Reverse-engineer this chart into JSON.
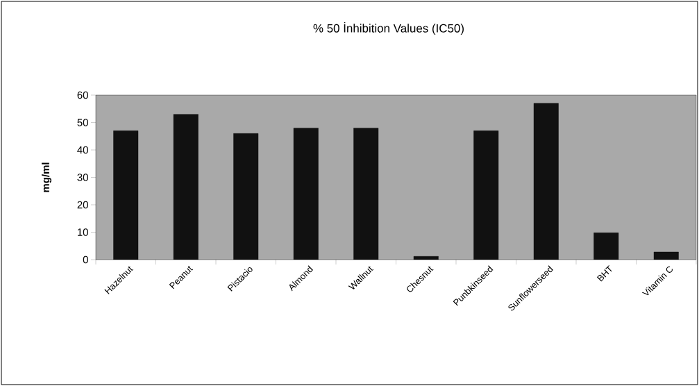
{
  "chart_data": {
    "type": "bar",
    "title": "% 50 İnhibition Values (IC50)",
    "ylabel": "mg/ml",
    "categories": [
      "Hazelnut",
      "Peanut",
      "Pistacio",
      "Almond",
      "Wallnut",
      "Chesnut",
      "Punbkinseed",
      "Sunflowerseed",
      "BHT",
      "Vitamin C"
    ],
    "values": [
      47,
      53,
      46,
      48,
      48,
      1.2,
      47,
      57,
      9.8,
      2.8
    ],
    "color": "#111111",
    "ylim": [
      0,
      60
    ],
    "yticks": [
      0,
      10,
      20,
      30,
      40,
      50,
      60
    ],
    "grid": false
  }
}
